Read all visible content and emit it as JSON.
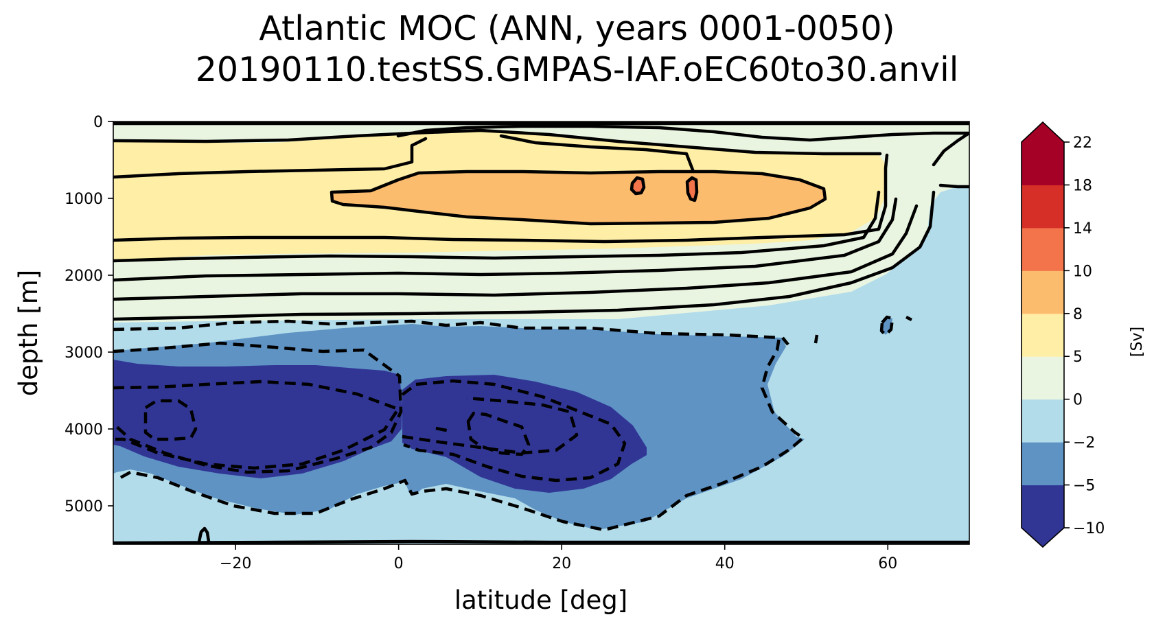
{
  "title": {
    "line1": "Atlantic MOC (ANN, years 0001-0050)",
    "line2": "20190110.testSS.GMPAS-IAF.oEC60to30.anvil"
  },
  "chart_data": {
    "type": "heatmap",
    "subtype": "filled contour",
    "xlabel": "latitude [deg]",
    "ylabel": "depth [m]",
    "xlim": [
      -35,
      70
    ],
    "ylim": [
      5500,
      0
    ],
    "y_inverted": true,
    "xticks": [
      -20,
      0,
      20,
      40,
      60
    ],
    "xtick_labels": [
      "−20",
      "0",
      "20",
      "40",
      "60"
    ],
    "yticks": [
      0,
      1000,
      2000,
      3000,
      4000,
      5000
    ],
    "ytick_labels": [
      "0",
      "1000",
      "2000",
      "3000",
      "4000",
      "5000"
    ],
    "grid": false,
    "colorbar": {
      "label": "[Sv]",
      "extend": "both",
      "levels": [
        -10,
        -5,
        -2,
        0,
        5,
        8,
        10,
        14,
        18,
        22
      ],
      "tick_labels": [
        "−10",
        "−5",
        "−2",
        "0",
        "5",
        "8",
        "10",
        "14",
        "18",
        "22"
      ],
      "colors": [
        "#313695",
        "#5e93c4",
        "#b3dcea",
        "#e9f5e1",
        "#feeea6",
        "#fcbc6e",
        "#f3744a",
        "#d52f27",
        "#a50026"
      ],
      "under_color": "#313695",
      "over_color": "#a50026"
    },
    "regions": [
      {
        "level": "0 to 5",
        "description": "positive shell around upper cell, 0-2600 m"
      },
      {
        "level": "5 to 8",
        "description": "upper overturning cell, approx. 200-1800 m, 35S-60N"
      },
      {
        "level": "8 to 10",
        "description": "core of upper cell, approx. 700-1300 m, 10S-52N"
      },
      {
        "level": "10 to 14",
        "description": "small patches near 29N and 36N, ~800-900 m"
      },
      {
        "level": "-2 to 0",
        "description": "background in deep ocean and north of 60N"
      },
      {
        "level": "-5 to -2",
        "description": "abyssal cell, approx. 2700-5200 m, 35S-50N"
      },
      {
        "level": "-10 to -5",
        "description": "abyssal core, approx. 3000-4800 m, 35S-30N"
      }
    ]
  }
}
